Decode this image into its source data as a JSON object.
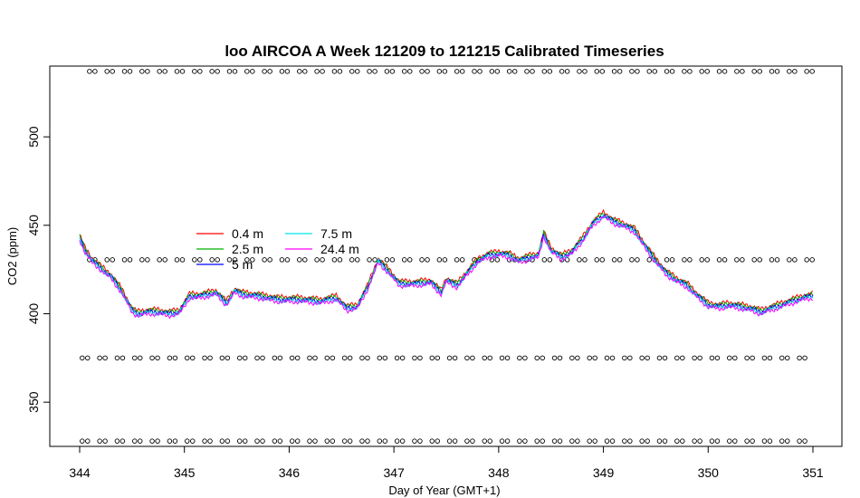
{
  "chart_data": {
    "type": "line",
    "title": "loo AIRCOA A  Week 121209 to 121215  Calibrated Timeseries",
    "xlabel": "Day of Year (GMT+1)",
    "ylabel": "CO2 (ppm)",
    "xlim": [
      344,
      351
    ],
    "ylim": [
      325,
      540
    ],
    "xticks": [
      344,
      345,
      346,
      347,
      348,
      349,
      350,
      351
    ],
    "yticks": [
      350,
      400,
      450,
      500
    ],
    "grid": false,
    "legend_position": "left-middle",
    "series": [
      {
        "name": "0.4 m",
        "color": "#ff0000",
        "offset": 1.5
      },
      {
        "name": "2.5 m",
        "color": "#00b000",
        "offset": 0.8
      },
      {
        "name": "5 m",
        "color": "#0000ff",
        "offset": 0.0
      },
      {
        "name": "7.5 m",
        "color": "#00e5ee",
        "offset": -0.6
      },
      {
        "name": "24.4 m",
        "color": "#ff00ff",
        "offset": -1.2
      }
    ],
    "base_curve": {
      "x": [
        344.0,
        344.05,
        344.12,
        344.2,
        344.3,
        344.4,
        344.5,
        344.55,
        344.65,
        344.75,
        344.85,
        344.95,
        345.05,
        345.15,
        345.3,
        345.4,
        345.48,
        345.55,
        345.7,
        345.9,
        346.1,
        346.3,
        346.45,
        346.55,
        346.65,
        346.75,
        346.85,
        346.95,
        347.05,
        347.2,
        347.35,
        347.45,
        347.5,
        347.6,
        347.7,
        347.8,
        347.9,
        348.0,
        348.1,
        348.2,
        348.3,
        348.38,
        348.43,
        348.5,
        348.6,
        348.7,
        348.8,
        348.9,
        349.0,
        349.1,
        349.2,
        349.3,
        349.4,
        349.5,
        349.6,
        349.7,
        349.8,
        349.9,
        350.0,
        350.1,
        350.2,
        350.3,
        350.4,
        350.5,
        350.6,
        350.7,
        350.8,
        350.9,
        351.0
      ],
      "y": [
        443,
        436,
        430,
        426,
        421,
        413,
        402,
        400,
        401,
        401,
        400,
        401,
        410,
        410,
        412,
        406,
        413,
        411,
        410,
        408,
        408,
        407,
        409,
        403,
        404,
        415,
        430,
        424,
        417,
        417,
        418,
        412,
        419,
        416,
        423,
        430,
        433,
        434,
        433,
        430,
        432,
        433,
        445,
        436,
        432,
        435,
        442,
        451,
        456,
        452,
        450,
        447,
        438,
        430,
        423,
        419,
        416,
        410,
        405,
        404,
        405,
        404,
        403,
        401,
        403,
        405,
        407,
        409,
        410
      ]
    },
    "calibration_levels": [
      {
        "y": 537,
        "x_start": 344.12,
        "x_end": 351.0,
        "spacing": 0.167
      },
      {
        "y": 430.5,
        "x_start": 344.12,
        "x_end": 351.0,
        "spacing": 0.167
      },
      {
        "y": 375,
        "x_start": 344.05,
        "x_end": 351.0,
        "spacing": 0.167
      },
      {
        "y": 328,
        "x_start": 344.05,
        "x_end": 351.0,
        "spacing": 0.167
      }
    ]
  }
}
